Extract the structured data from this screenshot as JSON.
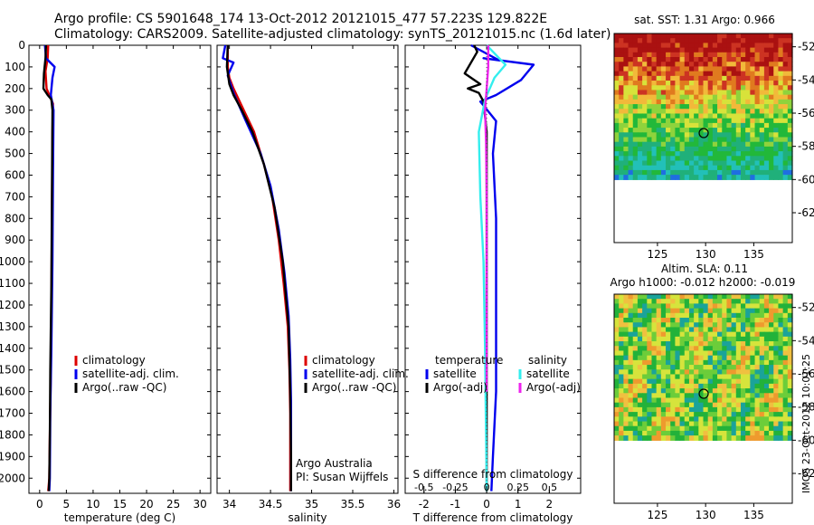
{
  "header": {
    "line1": "Argo profile: CS 5901648_174 13-Oct-2012 20121015_477 57.223S 129.822E",
    "line2": "Climatology: CARS2009. Satellite-adjusted climatology: synTS_20121015.nc (1.6d later)"
  },
  "colors": {
    "climatology": "#dd0000",
    "satellite_clim": "#0000ee",
    "argo": "#000000",
    "sat_salinity": "#33eeee",
    "argo_salinity_adj": "#ee22ee"
  },
  "credit": "IMOS 23-Oct-2012 10:01:25",
  "chart_data": [
    {
      "type": "line",
      "id": "temperature",
      "xlabel": "temperature (deg C)",
      "ylabel": "",
      "xlim": [
        -2,
        32
      ],
      "ylim": [
        2070,
        0
      ],
      "xticks": [
        0,
        5,
        10,
        15,
        20,
        25,
        30
      ],
      "yticks": [
        0,
        100,
        200,
        300,
        400,
        500,
        600,
        700,
        800,
        900,
        1000,
        1100,
        1200,
        1300,
        1400,
        1500,
        1600,
        1700,
        1800,
        1900,
        2000
      ],
      "legend": [
        "climatology",
        "satellite-adj. clim.",
        "Argo(..raw -QC)"
      ],
      "series": [
        {
          "name": "climatology",
          "color": "#dd0000",
          "x": [
            1.6,
            1.5,
            1.1,
            1.3,
            1.8,
            2.5,
            2.4,
            2.3,
            2.2,
            2.1,
            1.9,
            1.8,
            1.6
          ],
          "y": [
            0,
            60,
            120,
            200,
            230,
            270,
            400,
            800,
            1200,
            1500,
            1800,
            2000,
            2060
          ]
        },
        {
          "name": "satellite-adj. clim.",
          "color": "#0000ee",
          "x": [
            1.0,
            1.2,
            2.0,
            2.8,
            2.4,
            2.1,
            2.6,
            2.5,
            2.4,
            2.2,
            2.0,
            1.9,
            1.8
          ],
          "y": [
            0,
            60,
            80,
            100,
            150,
            230,
            300,
            600,
            1000,
            1400,
            1700,
            2000,
            2060
          ]
        },
        {
          "name": "Argo(..raw -QC)",
          "color": "#000000",
          "x": [
            1.2,
            1.1,
            0.8,
            0.7,
            1.5,
            2.2,
            2.4,
            2.3,
            2.2,
            2.0,
            1.9,
            1.8,
            1.7
          ],
          "y": [
            0,
            60,
            130,
            200,
            230,
            250,
            300,
            700,
            1100,
            1500,
            1800,
            2000,
            2060
          ]
        }
      ]
    },
    {
      "type": "line",
      "id": "salinity",
      "xlabel": "salinity",
      "xlim": [
        33.85,
        36.05
      ],
      "ylim": [
        2070,
        0
      ],
      "xticks": [
        34,
        34.5,
        35,
        35.5,
        36
      ],
      "xtick_labels": [
        "34",
        "34.5",
        "35",
        "35.5",
        "36"
      ],
      "legend": [
        "climatology",
        "satellite-adj. clim.",
        "Argo(..raw -QC)"
      ],
      "annotation": [
        "Argo Australia",
        "PI: Susan Wijffels"
      ],
      "series": [
        {
          "name": "climatology",
          "color": "#dd0000",
          "x": [
            33.98,
            33.98,
            34.0,
            34.05,
            34.15,
            34.3,
            34.42,
            34.52,
            34.6,
            34.66,
            34.71,
            34.73,
            34.74,
            34.74,
            34.74
          ],
          "y": [
            0,
            100,
            150,
            200,
            280,
            400,
            550,
            700,
            900,
            1100,
            1300,
            1500,
            1700,
            1900,
            2060
          ]
        },
        {
          "name": "satellite-adj. clim.",
          "color": "#0000ee",
          "x": [
            33.95,
            33.92,
            34.05,
            33.98,
            34.05,
            34.2,
            34.38,
            34.5,
            34.6,
            34.67,
            34.72,
            34.74,
            34.75,
            34.75,
            34.75
          ],
          "y": [
            0,
            60,
            80,
            140,
            220,
            350,
            500,
            650,
            850,
            1050,
            1250,
            1450,
            1650,
            1850,
            2060
          ]
        },
        {
          "name": "Argo(..raw -QC)",
          "color": "#000000",
          "x": [
            33.98,
            33.97,
            34.0,
            34.05,
            34.15,
            34.28,
            34.42,
            34.55,
            34.65,
            34.72,
            34.74,
            34.75,
            34.75
          ],
          "y": [
            0,
            100,
            180,
            230,
            300,
            400,
            550,
            750,
            1000,
            1300,
            1600,
            1900,
            2060
          ]
        }
      ]
    },
    {
      "type": "line",
      "id": "difference",
      "xlabel": "T difference from climatology",
      "top_axis_label": "S difference from climatology",
      "xlim": [
        -2.6,
        3.0
      ],
      "ylim": [
        2070,
        0
      ],
      "xticks": [
        -2,
        -1,
        0,
        1,
        2
      ],
      "top_ticks": [
        -0.5,
        -0.25,
        0,
        0.25,
        0.5
      ],
      "top_tick_labels": [
        "-0.5",
        "-0.25",
        "0",
        "0.25",
        "0.5"
      ],
      "legend_groups": [
        {
          "title": "temperature",
          "entries": [
            "satellite",
            "Argo(-adj)"
          ]
        },
        {
          "title": "salinity",
          "entries": [
            "satellite",
            "Argo(-adj)"
          ]
        }
      ],
      "series": [
        {
          "name": "satellite",
          "group": "temperature",
          "color": "#0000ee",
          "x": [
            -0.5,
            0.4,
            -0.1,
            1.5,
            1.1,
            0.3,
            -0.2,
            0.3,
            0.2,
            0.3,
            0.3,
            0.3,
            0.2,
            0.15
          ],
          "y": [
            0,
            70,
            60,
            90,
            160,
            230,
            260,
            350,
            500,
            800,
            1200,
            1600,
            1900,
            2060
          ]
        },
        {
          "name": "Argo(-adj)",
          "group": "temperature",
          "color": "#000000",
          "x": [
            -0.4,
            -0.3,
            -0.7,
            -0.2,
            -0.6,
            -0.25,
            -0.1,
            0,
            0,
            0,
            0,
            0
          ],
          "y": [
            0,
            30,
            130,
            180,
            200,
            220,
            260,
            400,
            700,
            1200,
            1700,
            2060
          ]
        },
        {
          "name": "satellite",
          "group": "salinity",
          "color": "#33eeee",
          "x": [
            0.0,
            0.4,
            0.6,
            0.25,
            -0.05,
            -0.25,
            -0.2,
            -0.1,
            -0.05,
            -0.02,
            0.0
          ],
          "y": [
            0,
            60,
            90,
            150,
            250,
            400,
            700,
            1000,
            1400,
            1800,
            2060
          ]
        },
        {
          "name": "Argo(-adj)",
          "group": "salinity",
          "color": "#ee22ee",
          "x": [
            0.05,
            0.05,
            0.0,
            -0.05,
            -0.02,
            0.0,
            0.0,
            0.0
          ],
          "y": [
            0,
            100,
            200,
            300,
            450,
            700,
            1200,
            1600
          ]
        }
      ]
    },
    {
      "type": "heatmap",
      "id": "sst-map",
      "title": "sat. SST: 1.31 Argo: 0.966",
      "xlim": [
        120.5,
        139
      ],
      "ylim": [
        -63.8,
        -51.2
      ],
      "xticks": [
        125,
        130,
        135
      ],
      "yticks": [
        -52,
        -54,
        -56,
        -58,
        -60,
        -62
      ],
      "marker": {
        "lon": 129.8,
        "lat": -57.2
      },
      "no_data_below_lat": -60
    },
    {
      "type": "heatmap",
      "id": "sla-map",
      "title": "Altim. SLA: 0.11",
      "subtitle": "Argo h1000: -0.012 h2000: -0.019",
      "xlim": [
        120.5,
        139
      ],
      "ylim": [
        -63.8,
        -51.2
      ],
      "xticks": [
        125,
        130,
        135
      ],
      "yticks": [
        -52,
        -54,
        -56,
        -58,
        -60,
        -62
      ],
      "marker": {
        "lon": 129.8,
        "lat": -57.2
      },
      "no_data_below_lat": -60
    }
  ]
}
